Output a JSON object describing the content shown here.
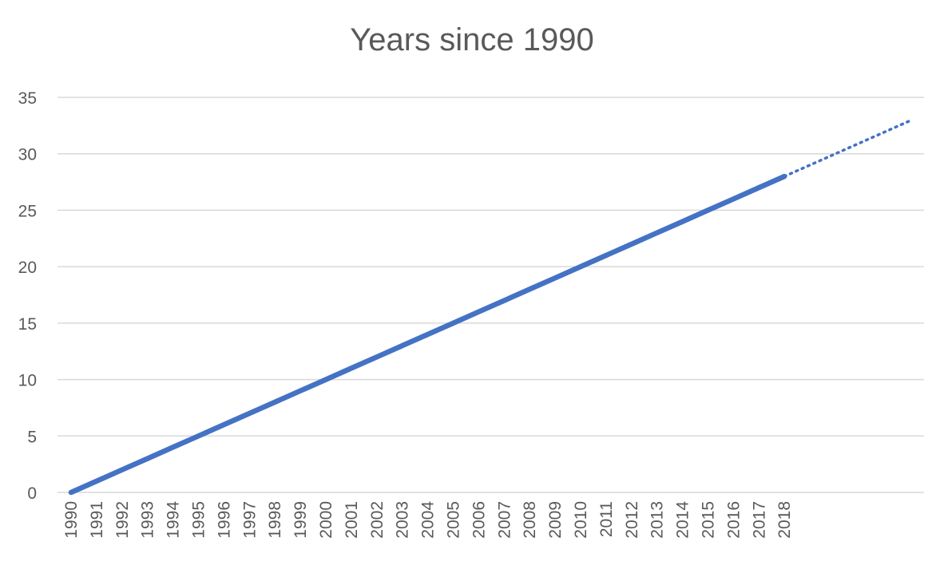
{
  "chart_data": {
    "type": "line",
    "title": "Years since 1990",
    "xlabel": "",
    "ylabel": "",
    "ylim": [
      0,
      35
    ],
    "yticks": [
      0,
      5,
      10,
      15,
      20,
      25,
      30,
      35
    ],
    "grid": true,
    "legend": "none",
    "categories": [
      "1990",
      "1991",
      "1992",
      "1993",
      "1994",
      "1995",
      "1996",
      "1997",
      "1998",
      "1999",
      "2000",
      "2001",
      "2002",
      "2003",
      "2004",
      "2005",
      "2006",
      "2007",
      "2008",
      "2009",
      "2010",
      "2011",
      "2012",
      "2013",
      "2014",
      "2015",
      "2016",
      "2017",
      "2018"
    ],
    "series": [
      {
        "values": [
          0,
          1,
          2,
          3,
          4,
          5,
          6,
          7,
          8,
          9,
          10,
          11,
          12,
          13,
          14,
          15,
          16,
          17,
          18,
          19,
          20,
          21,
          22,
          23,
          24,
          25,
          26,
          27,
          28
        ],
        "color": "#4472C4",
        "trendline": {
          "style": "dotted",
          "extends_categories": 5,
          "end_value": 33
        }
      }
    ]
  }
}
